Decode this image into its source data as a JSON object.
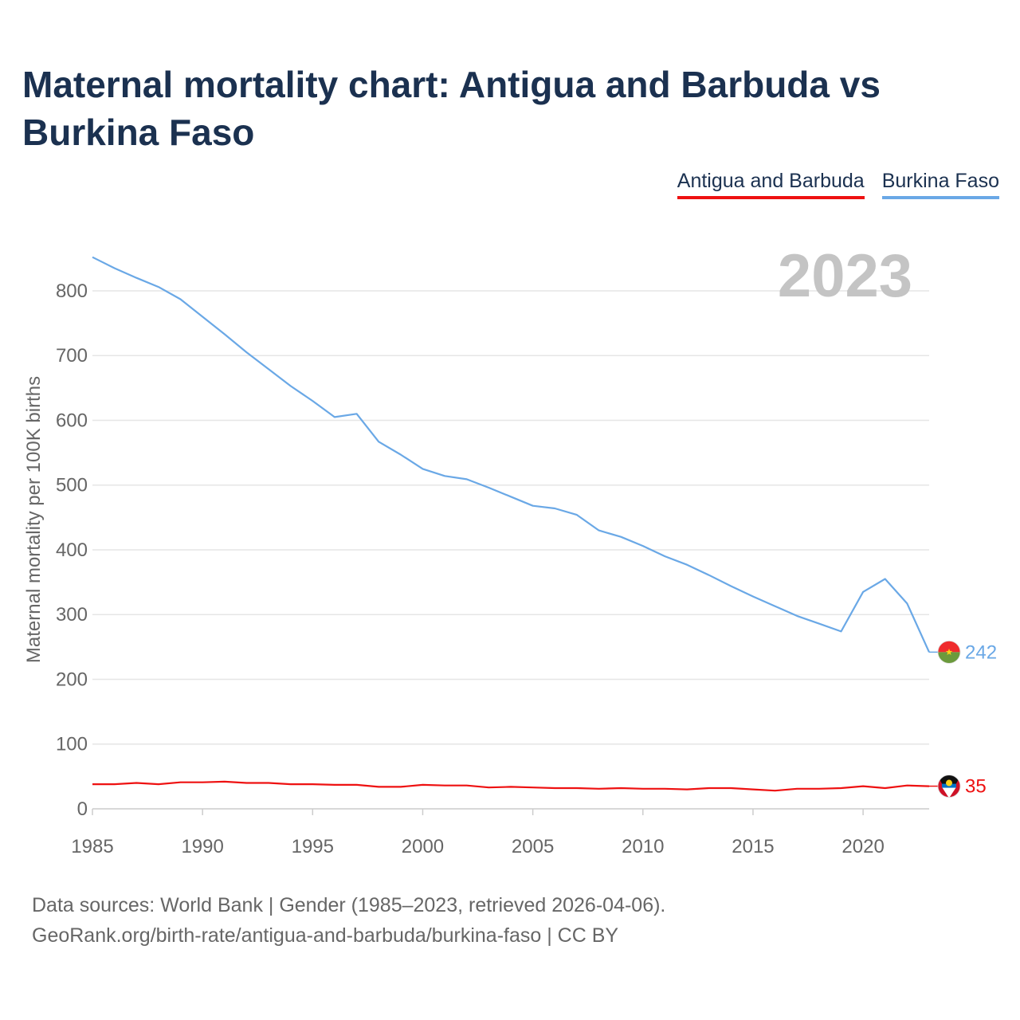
{
  "page": {
    "title": "Maternal mortality chart: Antigua and Barbuda vs Burkina Faso",
    "year_watermark": "2023",
    "footer_line1": "Data sources: World Bank | Gender (1985–2023, retrieved 2026-04-06).",
    "footer_line2": "GeoRank.org/birth-rate/antigua-and-barbuda/burkina-faso | CC BY"
  },
  "chart_data": {
    "type": "line",
    "title": "Maternal mortality chart: Antigua and Barbuda vs Burkina Faso",
    "xlabel": "",
    "ylabel": "Maternal mortality per 100K births",
    "xlim": [
      1985,
      2023
    ],
    "ylim": [
      0,
      860
    ],
    "x_ticks": [
      1985,
      1990,
      1995,
      2000,
      2005,
      2010,
      2015,
      2020
    ],
    "y_ticks": [
      0,
      100,
      200,
      300,
      400,
      500,
      600,
      700,
      800
    ],
    "grid": true,
    "legend_position": "top-right",
    "x": [
      1985,
      1986,
      1987,
      1988,
      1989,
      1990,
      1991,
      1992,
      1993,
      1994,
      1995,
      1996,
      1997,
      1998,
      1999,
      2000,
      2001,
      2002,
      2003,
      2004,
      2005,
      2006,
      2007,
      2008,
      2009,
      2010,
      2011,
      2012,
      2013,
      2014,
      2015,
      2016,
      2017,
      2018,
      2019,
      2020,
      2021,
      2022,
      2023
    ],
    "series": [
      {
        "name": "Antigua and Barbuda",
        "color": "#ee1111",
        "end_label": "35",
        "flag": "antigua-and-barbuda-flag-icon",
        "values": [
          38,
          38,
          40,
          38,
          41,
          41,
          42,
          40,
          40,
          38,
          38,
          37,
          37,
          34,
          34,
          37,
          36,
          36,
          33,
          34,
          33,
          32,
          32,
          31,
          32,
          31,
          31,
          30,
          32,
          32,
          30,
          28,
          31,
          31,
          32,
          35,
          32,
          36,
          35
        ]
      },
      {
        "name": "Burkina Faso",
        "color": "#6aa8e6",
        "end_label": "242",
        "flag": "burkina-faso-flag-icon",
        "values": [
          852,
          835,
          820,
          806,
          787,
          760,
          733,
          705,
          679,
          653,
          630,
          605,
          610,
          567,
          547,
          525,
          514,
          509,
          496,
          482,
          468,
          464,
          454,
          430,
          420,
          406,
          390,
          377,
          361,
          344,
          328,
          313,
          298,
          286,
          274,
          335,
          355,
          317,
          242
        ]
      }
    ]
  }
}
